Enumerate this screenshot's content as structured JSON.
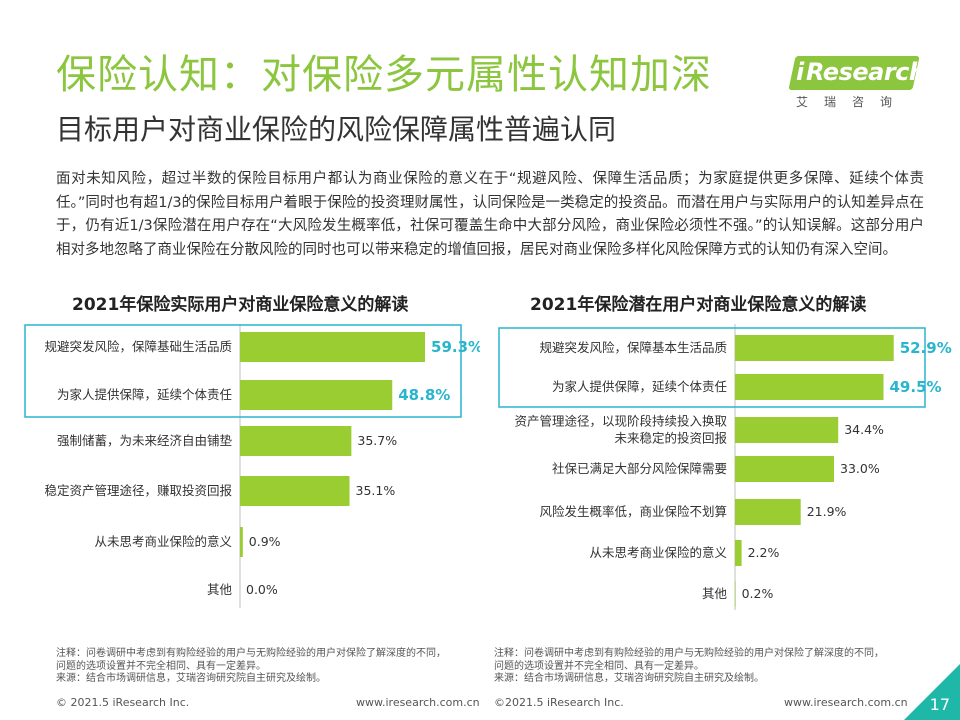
{
  "header": {
    "title": "保险认知：对保险多元属性认知加深",
    "subtitle": "目标用户对商业保险的风险保障属性普遍认同"
  },
  "logo": {
    "brand_i": "i",
    "brand_rest": "Research",
    "cn": "艾瑞咨询"
  },
  "intro": "面对未知风险，超过半数的保险目标用户都认为商业保险的意义在于“规避风险、保障生活品质；为家庭提供更多保障、延续个体责任。”同时也有超1/3的保险目标用户着眼于保险的投资理财属性，认同保险是一类稳定的投资品。而潜在用户与实际用户的认知差异点在于，仍有近1/3保险潜在用户存在“大风险发生概率低，社保可覆盖生命中大部分风险，商业保险必须性不强。”的认知误解。这部分用户相对多地忽略了商业保险在分散风险的同时也可以带来稳定的增值回报，居民对商业保险多样化风险保障方式的认知仍有深入空间。",
  "colors": {
    "bar": "#9acd32",
    "highlight_value": "#29b5cd",
    "highlight_box": "#29b5cd",
    "title": "#8cc63f",
    "corner": "#1fb8a8"
  },
  "chart_data": [
    {
      "type": "bar",
      "orientation": "horizontal",
      "title": "2021年保险实际用户对商业保险意义的解读",
      "unit": "%",
      "highlighted_count": 2,
      "categories": [
        "规避突发风险，保障基础生活品质",
        "为家人提供保障，延续个体责任",
        "强制储蓄，为未来经济自由铺垫",
        "稳定资产管理途径，赚取投资回报",
        "从未思考商业保险的意义",
        "其他"
      ],
      "values": [
        59.3,
        48.8,
        35.7,
        35.1,
        0.9,
        0.0
      ],
      "value_labels": [
        "59.3%",
        "48.8%",
        "35.7%",
        "35.1%",
        "0.9%",
        "0.0%"
      ]
    },
    {
      "type": "bar",
      "orientation": "horizontal",
      "title": "2021年保险潜在用户对商业保险意义的解读",
      "unit": "%",
      "highlighted_count": 2,
      "categories": [
        "规避突发风险，保障基本生活品质",
        "为家人提供保障，延续个体责任",
        "资产管理途径，以现阶段持续投入换取未来稳定的投资回报",
        "社保已满足大部分风险保障需要",
        "风险发生概率低，商业保险不划算",
        "从未思考商业保险的意义",
        "其他"
      ],
      "category_lines": [
        [
          "规避突发风险，保障基本生活品质"
        ],
        [
          "为家人提供保障，延续个体责任"
        ],
        [
          "资产管理途径，以现阶段持续投入换取",
          "未来稳定的投资回报"
        ],
        [
          "社保已满足大部分风险保障需要"
        ],
        [
          "风险发生概率低，商业保险不划算"
        ],
        [
          "从未思考商业保险的意义"
        ],
        [
          "其他"
        ]
      ],
      "values": [
        52.9,
        49.5,
        34.4,
        33.0,
        21.9,
        2.2,
        0.2
      ],
      "value_labels": [
        "52.9%",
        "49.5%",
        "34.4%",
        "33.0%",
        "21.9%",
        "2.2%",
        "0.2%"
      ]
    }
  ],
  "notes": {
    "left": [
      "注释：问卷调研中考虑到有购险经验的用户与无购险经验的用户对保险了解深度的不同，",
      "问题的选项设置并不完全相同、具有一定差异。",
      "来源：结合市场调研信息，艾瑞咨询研究院自主研究及绘制。"
    ],
    "right": [
      "注释：问卷调研中考虑到有购险经验的用户与无购险经验的用户对保险了解深度的不同，",
      "问题的选项设置并不完全相同、具有一定差异。",
      "来源：结合市场调研信息，艾瑞咨询研究院自主研究及绘制。"
    ]
  },
  "footer": {
    "left_copyright": "© 2021.5 iResearch Inc.",
    "left_url": "www.iresearch.com.cn",
    "right_copyright": "©2021.5 iResearch Inc.",
    "right_url": "www.iresearch.com.cn",
    "page_number": "17"
  }
}
